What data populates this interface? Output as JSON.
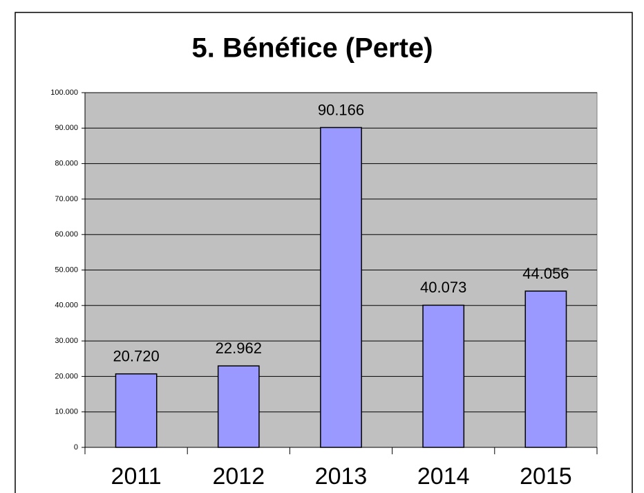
{
  "chart_data": {
    "type": "bar",
    "title": "5. Bénéfice (Perte)",
    "categories": [
      "2011",
      "2012",
      "2013",
      "2014",
      "2015"
    ],
    "values": [
      20720,
      22962,
      90166,
      40073,
      44056
    ],
    "value_labels": [
      "20.720",
      "22.962",
      "90.166",
      "40.073",
      "44.056"
    ],
    "color": "#9999ff",
    "ylim": [
      0,
      100000
    ],
    "yticks": [
      0,
      {
        "value": 10000,
        "label": "10.000"
      },
      {
        "value": 20000,
        "label": "20.000"
      },
      {
        "value": 30000,
        "label": "30.000"
      },
      {
        "value": 40000,
        "label": "40.000"
      },
      {
        "value": 50000,
        "label": "50.000"
      },
      {
        "value": 60000,
        "label": "60.000"
      },
      {
        "value": 70000,
        "label": "70.000"
      },
      {
        "value": 80000,
        "label": "80.000"
      },
      {
        "value": 90000,
        "label": "90.000"
      },
      {
        "value": 100000,
        "label": "100.000"
      }
    ],
    "grid": true
  }
}
